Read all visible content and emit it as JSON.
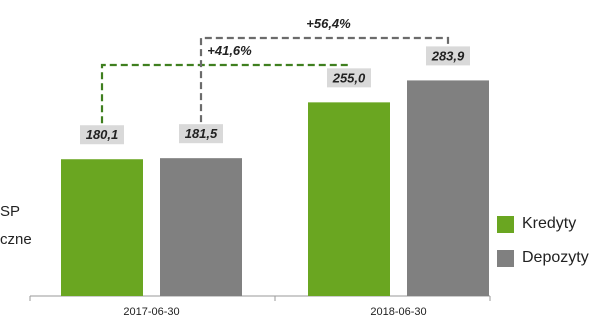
{
  "side_text": {
    "line1": "SP",
    "line2": "czne"
  },
  "chart_data": {
    "type": "bar",
    "categories": [
      "2017-06-30",
      "2018-06-30"
    ],
    "series": [
      {
        "name": "Kredyty",
        "color": "#6aa621",
        "values": [
          180.1,
          255.0
        ],
        "labels": [
          "180,1",
          "255,0"
        ]
      },
      {
        "name": "Depozyty",
        "color": "#808080",
        "values": [
          181.5,
          283.9
        ],
        "labels": [
          "181,5",
          "283,9"
        ]
      }
    ],
    "changes": [
      {
        "series": "Kredyty",
        "label": "+41,6%",
        "color": "#3f7f1f"
      },
      {
        "series": "Depozyty",
        "label": "+56,4%",
        "color": "#6b6b6b"
      }
    ],
    "legend_position": "right"
  }
}
